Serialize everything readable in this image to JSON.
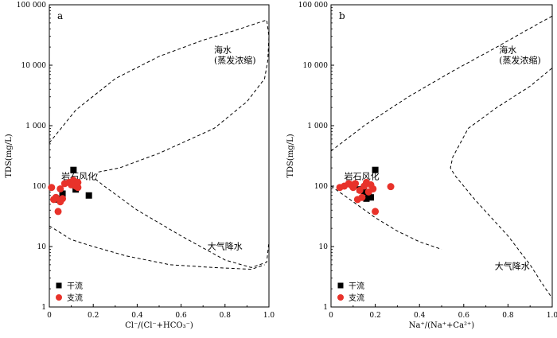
{
  "chart_data": [
    {
      "type": "scatter",
      "panel_label": "a",
      "xlabel": "Cl⁻/(Cl⁻+HCO₃⁻)",
      "ylabel": "TDS(mg/L)",
      "xlim": [
        0,
        1.0
      ],
      "ylim": [
        1,
        100000
      ],
      "yscale": "log",
      "x_ticks": [
        "0",
        "0.2",
        "0.4",
        "0.6",
        "0.8",
        "1.0"
      ],
      "y_ticks": [
        "1",
        "10",
        "100",
        "1 000",
        "10 000",
        "100 000"
      ],
      "regions": [
        {
          "lines": [
            "岩石风化"
          ]
        },
        {
          "lines": [
            "海水",
            "(蒸发浓缩)"
          ]
        },
        {
          "lines": [
            "大气降水"
          ]
        }
      ],
      "series": [
        {
          "name": "干流",
          "marker": "square",
          "color": "#000000",
          "points": [
            [
              0.04,
              60
            ],
            [
              0.06,
              75
            ],
            [
              0.11,
              185
            ],
            [
              0.12,
              88
            ],
            [
              0.18,
              70
            ]
          ]
        },
        {
          "name": "支流",
          "marker": "circle",
          "color": "#e8322a",
          "points": [
            [
              0.01,
              95
            ],
            [
              0.02,
              60
            ],
            [
              0.03,
              65
            ],
            [
              0.04,
              38
            ],
            [
              0.05,
              55
            ],
            [
              0.05,
              90
            ],
            [
              0.06,
              62
            ],
            [
              0.07,
              110
            ],
            [
              0.09,
              115
            ],
            [
              0.1,
              105
            ],
            [
              0.11,
              125
            ],
            [
              0.12,
              100
            ],
            [
              0.13,
              95
            ],
            [
              0.13,
              115
            ]
          ]
        }
      ]
    },
    {
      "type": "scatter",
      "panel_label": "b",
      "xlabel": "Na⁺/(Na⁺+Ca²⁺)",
      "ylabel": "TDS(mg/L)",
      "xlim": [
        0,
        1.0
      ],
      "ylim": [
        1,
        100000
      ],
      "yscale": "log",
      "x_ticks": [
        "0",
        "0.2",
        "0.4",
        "0.6",
        "0.8",
        "1.0"
      ],
      "y_ticks": [
        "1",
        "10",
        "100",
        "1 000",
        "10 000",
        "100 000"
      ],
      "regions": [
        {
          "lines": [
            "岩石风化"
          ]
        },
        {
          "lines": [
            "海水",
            "(蒸发浓缩)"
          ]
        },
        {
          "lines": [
            "大气降水"
          ]
        }
      ],
      "series": [
        {
          "name": "干流",
          "marker": "square",
          "color": "#000000",
          "points": [
            [
              0.13,
              88
            ],
            [
              0.15,
              80
            ],
            [
              0.16,
              62
            ],
            [
              0.17,
              72
            ],
            [
              0.18,
              65
            ],
            [
              0.2,
              185
            ]
          ]
        },
        {
          "name": "支流",
          "marker": "circle",
          "color": "#e8322a",
          "points": [
            [
              0.04,
              95
            ],
            [
              0.06,
              100
            ],
            [
              0.08,
              110
            ],
            [
              0.09,
              105
            ],
            [
              0.1,
              95
            ],
            [
              0.11,
              110
            ],
            [
              0.12,
              60
            ],
            [
              0.13,
              85
            ],
            [
              0.14,
              65
            ],
            [
              0.15,
              100
            ],
            [
              0.16,
              115
            ],
            [
              0.17,
              80
            ],
            [
              0.18,
              105
            ],
            [
              0.19,
              90
            ],
            [
              0.2,
              38
            ],
            [
              0.27,
              98
            ]
          ]
        }
      ]
    }
  ]
}
